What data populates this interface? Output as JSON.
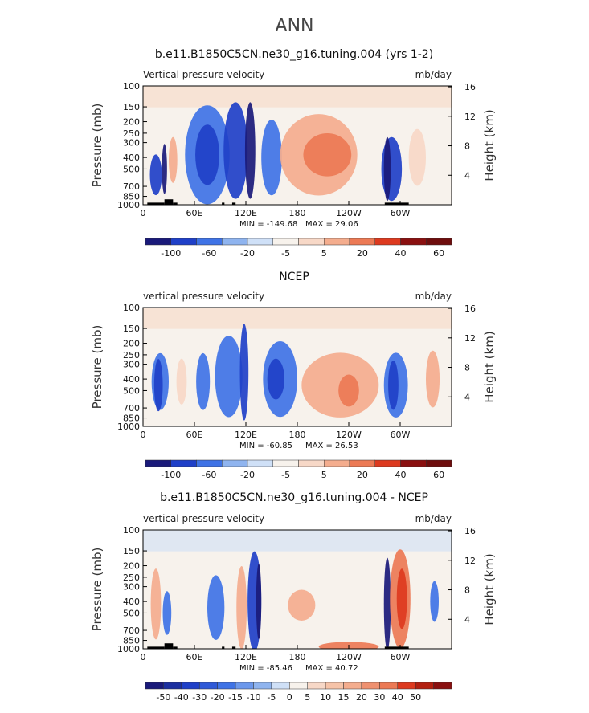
{
  "page_title": "ANN",
  "colors": {
    "blue_deep": "#1a1a7a",
    "blue_strong": "#1f40c8",
    "blue_mid": "#3f73e6",
    "blue_light": "#8fb4ef",
    "blue_pale": "#cfe0f7",
    "neutral": "#f7f2ec",
    "red_pale": "#f7d8c7",
    "red_light": "#f4ad8e",
    "red_mid": "#ec7a55",
    "red_strong": "#dd3a1f",
    "red_deep": "#8a1010",
    "topography": "#000000"
  },
  "chart_data": [
    {
      "type": "heatmap",
      "title": "b.e11.B1850C5CN.ne30_g16.tuning.004 (yrs 1-2)",
      "left_label": "Vertical pressure velocity",
      "right_label": "mb/day",
      "ylabel": "Pressure (mb)",
      "ylabel_right": "Height (km)",
      "x_ticks": [
        "0",
        "60E",
        "120E",
        "180",
        "120W",
        "60W"
      ],
      "x_tick_lon": [
        0,
        60,
        120,
        180,
        240,
        300
      ],
      "y_ticks": [
        100,
        150,
        200,
        250,
        300,
        400,
        500,
        700,
        850,
        1000
      ],
      "height_ticks": [
        4,
        8,
        12,
        16
      ],
      "min_label": "MIN = -149.68",
      "max_label": "MAX =  29.06",
      "colorbar_labels": [
        "-100",
        "-60",
        "-20",
        "-5",
        "5",
        "20",
        "40",
        "60"
      ]
    },
    {
      "type": "heatmap",
      "title": "NCEP",
      "left_label": "vertical pressure velocity",
      "right_label": "mb/day",
      "ylabel": "Pressure (mb)",
      "ylabel_right": "Height (km)",
      "x_ticks": [
        "0",
        "60E",
        "120E",
        "180",
        "120W",
        "60W"
      ],
      "x_tick_lon": [
        0,
        60,
        120,
        180,
        240,
        300
      ],
      "y_ticks": [
        100,
        150,
        200,
        250,
        300,
        400,
        500,
        700,
        850,
        1000
      ],
      "height_ticks": [
        4,
        8,
        12,
        16
      ],
      "min_label": "MIN =  -60.85",
      "max_label": "MAX =  26.53",
      "colorbar_labels": [
        "-100",
        "-60",
        "-20",
        "-5",
        "5",
        "20",
        "40",
        "60"
      ]
    },
    {
      "type": "heatmap",
      "title": "b.e11.B1850C5CN.ne30_g16.tuning.004 - NCEP",
      "left_label": "vertical pressure velocity",
      "right_label": "mb/day",
      "ylabel": "Pressure (mb)",
      "ylabel_right": "Height (km)",
      "x_ticks": [
        "0",
        "60E",
        "120E",
        "180",
        "120W",
        "60W"
      ],
      "x_tick_lon": [
        0,
        60,
        120,
        180,
        240,
        300
      ],
      "y_ticks": [
        100,
        150,
        200,
        250,
        300,
        400,
        500,
        700,
        850,
        1000
      ],
      "height_ticks": [
        4,
        8,
        12,
        16
      ],
      "min_label": "MIN =  -85.46",
      "max_label": "MAX =  40.72",
      "colorbar_labels": [
        "-50",
        "-40",
        "-30",
        "-20",
        "-15",
        "-10",
        "-5",
        "0",
        "5",
        "10",
        "15",
        "20",
        "30",
        "40",
        "50"
      ]
    }
  ]
}
